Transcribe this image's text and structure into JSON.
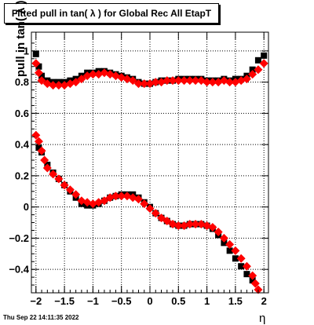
{
  "header": {
    "title": "Fitted pull in tan( λ ) for Global Rec All EtapT"
  },
  "footer": {
    "timestamp": "Thu Sep 22 14:11:35 2022"
  },
  "chart_data": {
    "type": "scatter",
    "title": "Fitted pull in tan( λ ) for Global Rec All EtapT",
    "xlabel": "η",
    "ylabel": "pull in tan( λ )",
    "xlim": [
      -2.08,
      2.08
    ],
    "ylim": [
      -0.55,
      1.12
    ],
    "grid": true,
    "xticks": [
      -2,
      -1.5,
      -1,
      -0.5,
      0,
      0.5,
      1,
      1.5,
      2
    ],
    "xtick_labels": [
      "−2",
      "−1.5",
      "−1",
      "−0.5",
      "0",
      "0.5",
      "1",
      "1.5",
      "2"
    ],
    "yticks": [
      -0.4,
      -0.2,
      0,
      0.2,
      0.4,
      0.6,
      0.8,
      1
    ],
    "ytick_labels": [
      "−0.4",
      "−0.2",
      "0",
      "0.2",
      "0.4",
      "0.6",
      "0.8",
      "1"
    ],
    "series": [
      {
        "color": "#000000",
        "marker": "square",
        "points": [
          [
            -2.0,
            0.98
          ],
          [
            -1.95,
            0.9
          ],
          [
            -1.9,
            0.84
          ],
          [
            -1.8,
            0.81
          ],
          [
            -1.7,
            0.8
          ],
          [
            -1.6,
            0.8
          ],
          [
            -1.5,
            0.8
          ],
          [
            -1.4,
            0.81
          ],
          [
            -1.3,
            0.82
          ],
          [
            -1.2,
            0.84
          ],
          [
            -1.1,
            0.86
          ],
          [
            -1.0,
            0.86
          ],
          [
            -0.9,
            0.87
          ],
          [
            -0.8,
            0.87
          ],
          [
            -0.7,
            0.86
          ],
          [
            -0.6,
            0.85
          ],
          [
            -0.5,
            0.84
          ],
          [
            -0.4,
            0.83
          ],
          [
            -0.3,
            0.82
          ],
          [
            -0.2,
            0.8
          ],
          [
            -0.1,
            0.79
          ],
          [
            0.0,
            0.79
          ],
          [
            0.1,
            0.8
          ],
          [
            0.2,
            0.81
          ],
          [
            0.3,
            0.81
          ],
          [
            0.4,
            0.81
          ],
          [
            0.5,
            0.82
          ],
          [
            0.6,
            0.82
          ],
          [
            0.7,
            0.82
          ],
          [
            0.8,
            0.82
          ],
          [
            0.9,
            0.82
          ],
          [
            1.0,
            0.81
          ],
          [
            1.1,
            0.81
          ],
          [
            1.2,
            0.81
          ],
          [
            1.3,
            0.82
          ],
          [
            1.4,
            0.81
          ],
          [
            1.5,
            0.82
          ],
          [
            1.6,
            0.82
          ],
          [
            1.7,
            0.84
          ],
          [
            1.8,
            0.88
          ],
          [
            1.9,
            0.94
          ],
          [
            2.0,
            0.97
          ],
          [
            -1.95,
            0.38
          ],
          [
            -1.9,
            0.35
          ],
          [
            -1.8,
            0.27
          ],
          [
            -1.7,
            0.22
          ],
          [
            -1.6,
            0.18
          ],
          [
            -1.5,
            0.14
          ],
          [
            -1.4,
            0.1
          ],
          [
            -1.3,
            0.06
          ],
          [
            -1.2,
            0.02
          ],
          [
            -1.1,
            0.01
          ],
          [
            -1.0,
            0.01
          ],
          [
            -0.9,
            0.02
          ],
          [
            -0.8,
            0.04
          ],
          [
            -0.7,
            0.06
          ],
          [
            -0.6,
            0.07
          ],
          [
            -0.5,
            0.08
          ],
          [
            -0.4,
            0.08
          ],
          [
            -0.3,
            0.08
          ],
          [
            -0.2,
            0.06
          ],
          [
            -0.1,
            0.03
          ],
          [
            0.0,
            0.0
          ],
          [
            0.1,
            -0.04
          ],
          [
            0.2,
            -0.07
          ],
          [
            0.3,
            -0.09
          ],
          [
            0.4,
            -0.11
          ],
          [
            0.5,
            -0.12
          ],
          [
            0.6,
            -0.12
          ],
          [
            0.7,
            -0.11
          ],
          [
            0.8,
            -0.11
          ],
          [
            0.9,
            -0.11
          ],
          [
            1.0,
            -0.12
          ],
          [
            1.1,
            -0.14
          ],
          [
            1.2,
            -0.18
          ],
          [
            1.3,
            -0.23
          ],
          [
            1.4,
            -0.28
          ],
          [
            1.5,
            -0.33
          ],
          [
            1.6,
            -0.38
          ],
          [
            1.7,
            -0.43
          ],
          [
            1.8,
            -0.47
          ]
        ]
      },
      {
        "color": "#ff0000",
        "marker": "diamond",
        "points": [
          [
            -2.0,
            0.92
          ],
          [
            -1.95,
            0.86
          ],
          [
            -1.9,
            0.81
          ],
          [
            -1.8,
            0.79
          ],
          [
            -1.7,
            0.78
          ],
          [
            -1.6,
            0.78
          ],
          [
            -1.5,
            0.78
          ],
          [
            -1.4,
            0.79
          ],
          [
            -1.3,
            0.8
          ],
          [
            -1.2,
            0.82
          ],
          [
            -1.1,
            0.84
          ],
          [
            -1.0,
            0.85
          ],
          [
            -0.9,
            0.85
          ],
          [
            -0.8,
            0.86
          ],
          [
            -0.7,
            0.85
          ],
          [
            -0.6,
            0.84
          ],
          [
            -0.5,
            0.83
          ],
          [
            -0.4,
            0.82
          ],
          [
            -0.3,
            0.81
          ],
          [
            -0.2,
            0.79
          ],
          [
            -0.1,
            0.79
          ],
          [
            0.0,
            0.79
          ],
          [
            0.1,
            0.8
          ],
          [
            0.2,
            0.8
          ],
          [
            0.3,
            0.81
          ],
          [
            0.4,
            0.81
          ],
          [
            0.5,
            0.81
          ],
          [
            0.6,
            0.81
          ],
          [
            0.7,
            0.81
          ],
          [
            0.8,
            0.81
          ],
          [
            0.9,
            0.81
          ],
          [
            1.0,
            0.8
          ],
          [
            1.1,
            0.8
          ],
          [
            1.2,
            0.8
          ],
          [
            1.3,
            0.81
          ],
          [
            1.4,
            0.8
          ],
          [
            1.5,
            0.8
          ],
          [
            1.6,
            0.81
          ],
          [
            1.7,
            0.82
          ],
          [
            1.8,
            0.85
          ],
          [
            1.9,
            0.88
          ],
          [
            2.0,
            0.92
          ],
          [
            -2.0,
            0.46
          ],
          [
            -1.95,
            0.42
          ],
          [
            -1.9,
            0.36
          ],
          [
            -1.85,
            0.3
          ],
          [
            -1.8,
            0.25
          ],
          [
            -1.7,
            0.21
          ],
          [
            -1.6,
            0.18
          ],
          [
            -1.5,
            0.14
          ],
          [
            -1.4,
            0.11
          ],
          [
            -1.3,
            0.08
          ],
          [
            -1.2,
            0.04
          ],
          [
            -1.1,
            0.03
          ],
          [
            -1.0,
            0.02
          ],
          [
            -0.9,
            0.03
          ],
          [
            -0.8,
            0.04
          ],
          [
            -0.7,
            0.06
          ],
          [
            -0.6,
            0.07
          ],
          [
            -0.5,
            0.07
          ],
          [
            -0.4,
            0.07
          ],
          [
            -0.3,
            0.06
          ],
          [
            -0.2,
            0.05
          ],
          [
            -0.1,
            0.02
          ],
          [
            0.0,
            -0.01
          ],
          [
            0.1,
            -0.04
          ],
          [
            0.2,
            -0.07
          ],
          [
            0.3,
            -0.09
          ],
          [
            0.4,
            -0.11
          ],
          [
            0.5,
            -0.12
          ],
          [
            0.6,
            -0.12
          ],
          [
            0.7,
            -0.11
          ],
          [
            0.8,
            -0.11
          ],
          [
            0.9,
            -0.11
          ],
          [
            1.0,
            -0.12
          ],
          [
            1.1,
            -0.13
          ],
          [
            1.2,
            -0.16
          ],
          [
            1.3,
            -0.2
          ],
          [
            1.4,
            -0.24
          ],
          [
            1.5,
            -0.28
          ],
          [
            1.6,
            -0.33
          ],
          [
            1.7,
            -0.38
          ],
          [
            1.8,
            -0.44
          ],
          [
            1.85,
            -0.49
          ],
          [
            1.9,
            -0.53
          ]
        ]
      }
    ]
  }
}
